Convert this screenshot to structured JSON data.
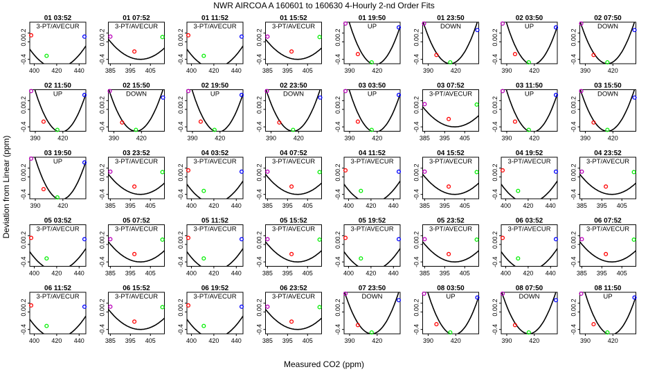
{
  "chart_data": {
    "type": "scatter",
    "title": "NWR   AIRCOA A    160601 to 160630   4-Hourly 2-nd Order Fits",
    "xlabel": "Measured CO2 (ppm)",
    "ylabel": "Deviation from Linear (ppm)",
    "ylim": [
      -0.5,
      0.45
    ],
    "y_ticks": [
      "-0.4",
      "0.0",
      "0.2"
    ],
    "point_colors": [
      "#ff0000",
      "#00ee00",
      "#0000ff",
      "#bb00bb"
    ],
    "panels": [
      {
        "title": "01 03:52",
        "label": "3-PT/AVECUR",
        "kind": "A"
      },
      {
        "title": "01 07:52",
        "label": "3-PT/AVECUR",
        "kind": "B"
      },
      {
        "title": "01 11:52",
        "label": "3-PT/AVECUR",
        "kind": "A"
      },
      {
        "title": "01 15:52",
        "label": "3-PT/AVECUR",
        "kind": "B"
      },
      {
        "title": "01 19:50",
        "label": "UP",
        "kind": "U"
      },
      {
        "title": "01 23:50",
        "label": "DOWN",
        "kind": "D"
      },
      {
        "title": "02 03:50",
        "label": "UP",
        "kind": "U"
      },
      {
        "title": "02 07:50",
        "label": "DOWN",
        "kind": "D"
      },
      {
        "title": "02 11:50",
        "label": "UP",
        "kind": "U"
      },
      {
        "title": "02 15:50",
        "label": "DOWN",
        "kind": "D"
      },
      {
        "title": "02 19:50",
        "label": "UP",
        "kind": "U"
      },
      {
        "title": "02 23:50",
        "label": "DOWN",
        "kind": "D"
      },
      {
        "title": "03 03:50",
        "label": "UP",
        "kind": "U"
      },
      {
        "title": "03 07:52",
        "label": "3-PT/AVECUR",
        "kind": "B"
      },
      {
        "title": "03 11:50",
        "label": "UP",
        "kind": "U"
      },
      {
        "title": "03 15:50",
        "label": "DOWN",
        "kind": "D"
      },
      {
        "title": "03 19:50",
        "label": "UP",
        "kind": "U"
      },
      {
        "title": "03 23:52",
        "label": "3-PT/AVECUR",
        "kind": "B"
      },
      {
        "title": "04 03:52",
        "label": "3-PT/AVECUR",
        "kind": "A"
      },
      {
        "title": "04 07:52",
        "label": "3-PT/AVECUR",
        "kind": "B"
      },
      {
        "title": "04 11:52",
        "label": "3-PT/AVECUR",
        "kind": "A"
      },
      {
        "title": "04 15:52",
        "label": "3-PT/AVECUR",
        "kind": "B"
      },
      {
        "title": "04 19:52",
        "label": "3-PT/AVECUR",
        "kind": "A"
      },
      {
        "title": "04 23:52",
        "label": "3-PT/AVECUR",
        "kind": "B"
      },
      {
        "title": "05 03:52",
        "label": "3-PT/AVECUR",
        "kind": "A"
      },
      {
        "title": "05 07:52",
        "label": "3-PT/AVECUR",
        "kind": "B"
      },
      {
        "title": "05 11:52",
        "label": "3-PT/AVECUR",
        "kind": "A"
      },
      {
        "title": "05 15:52",
        "label": "3-PT/AVECUR",
        "kind": "B"
      },
      {
        "title": "05 19:52",
        "label": "3-PT/AVECUR",
        "kind": "A"
      },
      {
        "title": "05 23:52",
        "label": "3-PT/AVECUR",
        "kind": "B"
      },
      {
        "title": "06 03:52",
        "label": "3-PT/AVECUR",
        "kind": "A"
      },
      {
        "title": "06 07:52",
        "label": "3-PT/AVECUR",
        "kind": "B"
      },
      {
        "title": "06 11:52",
        "label": "3-PT/AVECUR",
        "kind": "A"
      },
      {
        "title": "06 15:52",
        "label": "3-PT/AVECUR",
        "kind": "B"
      },
      {
        "title": "06 19:52",
        "label": "3-PT/AVECUR",
        "kind": "A"
      },
      {
        "title": "06 23:52",
        "label": "3-PT/AVECUR",
        "kind": "B"
      },
      {
        "title": "07 23:50",
        "label": "DOWN",
        "kind": "D"
      },
      {
        "title": "08 03:50",
        "label": "UP",
        "kind": "U"
      },
      {
        "title": "08 07:50",
        "label": "DOWN",
        "kind": "D"
      },
      {
        "title": "08 11:50",
        "label": "UP",
        "kind": "U"
      }
    ],
    "kinds": {
      "A": {
        "xlim": [
          396,
          446
        ],
        "xticks": [
          400,
          420,
          440
        ],
        "curve": [
          420,
          -0.6,
          0.00075
        ],
        "points": [
          [
            397,
            0.15,
            0
          ],
          [
            411,
            -0.32,
            1
          ],
          [
            445,
            0.12,
            2
          ]
        ]
      },
      "B": {
        "xlim": [
          384,
          412
        ],
        "xticks": [
          385,
          395,
          405
        ],
        "curve": [
          400,
          -0.4,
          0.0018
        ],
        "points": [
          [
            385,
            0.12,
            3
          ],
          [
            397,
            -0.22,
            0
          ],
          [
            411,
            0.11,
            1
          ]
        ]
      },
      "U": {
        "xlim": [
          384,
          445
        ],
        "xticks": [
          390,
          420
        ],
        "curve": [
          418,
          -0.52,
          0.0012
        ],
        "points": [
          [
            385,
            0.42,
            3
          ],
          [
            399,
            -0.28,
            0
          ],
          [
            414,
            -0.5,
            1
          ],
          [
            444,
            0.33,
            2
          ]
        ]
      },
      "D": {
        "xlim": [
          384,
          445
        ],
        "xticks": [
          390,
          420
        ],
        "curve": [
          414,
          -0.5,
          0.0011
        ],
        "points": [
          [
            385,
            0.42,
            3
          ],
          [
            399,
            -0.3,
            0
          ],
          [
            414,
            -0.48,
            1
          ],
          [
            444,
            0.27,
            2
          ]
        ]
      }
    }
  }
}
